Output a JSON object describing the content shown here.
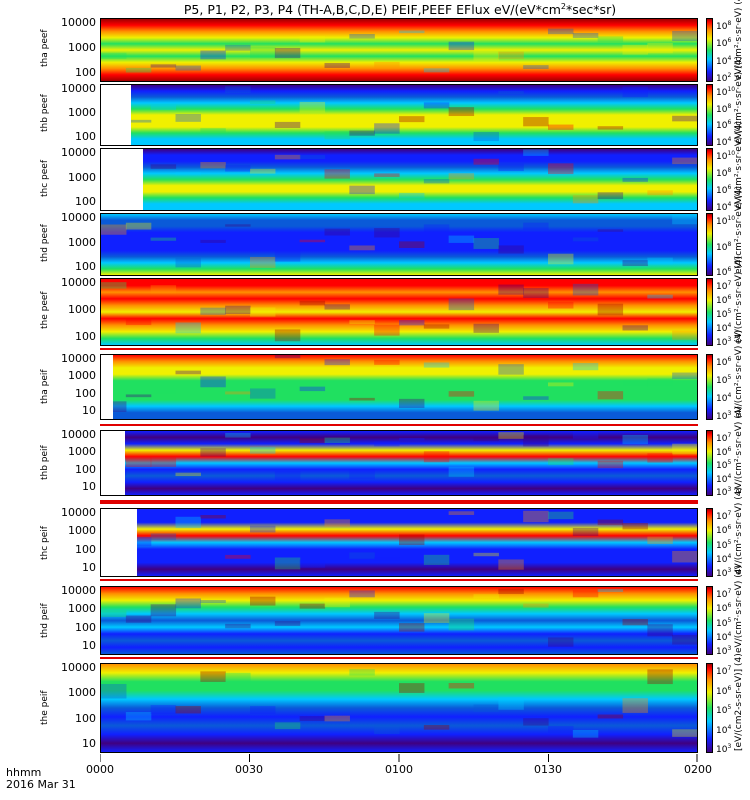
{
  "header": {
    "title_main": "P5, P1, P2, P3, P4 (TH-A,B,C,D,E) PEIF,PEEF EFlux eV/(eV*cm",
    "title_sup": "2",
    "title_tail": "*sec*sr)"
  },
  "footer": {
    "time_label": "hhmm",
    "date_label": "2016 Mar 31"
  },
  "colors": {
    "spectrum": [
      "#400080",
      "#1020ff",
      "#0a5ad8",
      "#00c8ff",
      "#20e060",
      "#f0f000",
      "#ff9000",
      "#ff0000",
      "#a00000"
    ]
  },
  "chart_data": {
    "type": "heatmap",
    "title": "P5, P1, P2, P3, P4 (TH-A,B,C,D,E) PEIF,PEEF EFlux eV/(eV*cm2*sec*sr)",
    "x_ticks": [
      "0000",
      "0030",
      "0100",
      "0130",
      "0200"
    ],
    "x_range": [
      "0000",
      "0200"
    ],
    "panels": [
      {
        "label": "tha peef",
        "y_ticks": [
          "10000",
          "1000",
          "100"
        ],
        "cbar_ticks": [
          [
            "10",
            "8"
          ],
          [
            "10",
            "6"
          ],
          [
            "10",
            "4"
          ],
          [
            "10",
            "2"
          ]
        ],
        "unit": "eV/(cm²·s·sr·eV) (4)",
        "blank_until_frac": 0.0,
        "profile": "ion_a"
      },
      {
        "label": "thb peef",
        "y_ticks": [
          "10000",
          "1000",
          "100"
        ],
        "cbar_ticks": [
          [
            "10",
            "10"
          ],
          [
            "10",
            "8"
          ],
          [
            "10",
            "6"
          ],
          [
            "10",
            "4"
          ]
        ],
        "unit": "eV/(cm²·s·sr·eV) (4)",
        "blank_until_frac": 0.05,
        "profile": "ion_b"
      },
      {
        "label": "thc peef",
        "y_ticks": [
          "10000",
          "1000",
          "100"
        ],
        "cbar_ticks": [
          [
            "10",
            "10"
          ],
          [
            "10",
            "8"
          ],
          [
            "10",
            "6"
          ],
          [
            "10",
            "4"
          ]
        ],
        "unit": "eV/(cm²·s·sr·eV) (4)",
        "blank_until_frac": 0.07,
        "profile": "ion_c"
      },
      {
        "label": "thd peef",
        "y_ticks": [
          "10000",
          "1000",
          "100"
        ],
        "cbar_ticks": [
          [
            "10",
            "10"
          ],
          [
            "10",
            "8"
          ],
          [
            "10",
            "6"
          ]
        ],
        "unit": "eV/(cm²·s·sr·eV) (4)",
        "blank_until_frac": 0.0,
        "profile": "ion_d"
      },
      {
        "label": "the peef",
        "y_ticks": [
          "10000",
          "1000",
          "100"
        ],
        "cbar_ticks": [
          [
            "10",
            "7"
          ],
          [
            "10",
            "6"
          ],
          [
            "10",
            "5"
          ],
          [
            "10",
            "4"
          ],
          [
            "10",
            "3"
          ]
        ],
        "unit": "eV/(cm²·s·sr·eV) (4)",
        "blank_until_frac": 0.0,
        "profile": "ion_e"
      },
      {
        "label": "tha peif",
        "y_ticks": [
          "10000",
          "1000",
          "100",
          "10"
        ],
        "cbar_ticks": [
          [
            "10",
            "6"
          ],
          [
            "10",
            "5"
          ],
          [
            "10",
            "4"
          ],
          [
            "10",
            "3"
          ]
        ],
        "unit": "eV/(cm²·s·sr·eV) (4)",
        "blank_until_frac": 0.02,
        "profile": "el_a"
      },
      {
        "label": "thb peif",
        "y_ticks": [
          "10000",
          "1000",
          "100",
          "10"
        ],
        "cbar_ticks": [
          [
            "10",
            "7"
          ],
          [
            "10",
            "6"
          ],
          [
            "10",
            "5"
          ],
          [
            "10",
            "4"
          ],
          [
            "10",
            "3"
          ]
        ],
        "unit": "eV/(cm²·s·sr·eV) (4)",
        "blank_until_frac": 0.04,
        "profile": "el_b"
      },
      {
        "label": "thc peif",
        "y_ticks": [
          "10000",
          "1000",
          "100",
          "10"
        ],
        "cbar_ticks": [
          [
            "10",
            "7"
          ],
          [
            "10",
            "6"
          ],
          [
            "10",
            "5"
          ],
          [
            "10",
            "4"
          ],
          [
            "10",
            "3"
          ]
        ],
        "unit": "eV/(cm²·s·sr·eV) (4)",
        "blank_until_frac": 0.06,
        "profile": "el_c"
      },
      {
        "label": "thd peif",
        "y_ticks": [
          "10000",
          "1000",
          "100",
          "10"
        ],
        "cbar_ticks": [
          [
            "10",
            "7"
          ],
          [
            "10",
            "6"
          ],
          [
            "10",
            "5"
          ],
          [
            "10",
            "4"
          ],
          [
            "10",
            "3"
          ]
        ],
        "unit": "eV/(cm²·s·sr·eV) (4)",
        "blank_until_frac": 0.0,
        "profile": "el_d"
      },
      {
        "label": "the peif",
        "y_ticks": [
          "10000",
          "1000",
          "100",
          "10"
        ],
        "cbar_ticks": [
          [
            "10",
            "7"
          ],
          [
            "10",
            "6"
          ],
          [
            "10",
            "5"
          ],
          [
            "10",
            "4"
          ],
          [
            "10",
            "3"
          ]
        ],
        "unit": "[eV/(cm2-s-sr-eV)] (4)",
        "blank_until_frac": 0.0,
        "profile": "el_e"
      }
    ]
  }
}
